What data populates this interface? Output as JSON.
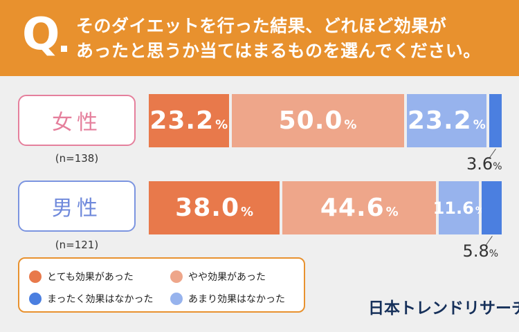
{
  "header": {
    "q_letter": "Q",
    "question_line1": "そのダイエットを行った結果、どれほど効果が",
    "question_line2": "あったと思うか当てはまるものを選んでください。"
  },
  "colors": {
    "header_bg": "#e8912e",
    "very_effective": "#e8794b",
    "somewhat_effective": "#eea68a",
    "not_very_effective": "#97b3ed",
    "not_effective": "#4b7fe0",
    "female": "#e57f9c",
    "male": "#7b94e0"
  },
  "chart_data": {
    "type": "bar",
    "orientation": "horizontal",
    "stacked": true,
    "normalized": true,
    "unit": "%",
    "title": "そのダイエットを行った結果、どれほど効果があったと思うか当てはまるものを選んでください。",
    "categories": [
      "女性",
      "男性"
    ],
    "sample_sizes": [
      "(n=138)",
      "(n=121)"
    ],
    "series": [
      {
        "name": "とても効果があった",
        "values": [
          23.2,
          38.0
        ]
      },
      {
        "name": "やや効果があった",
        "values": [
          50.0,
          44.6
        ]
      },
      {
        "name": "あまり効果はなかった",
        "values": [
          23.2,
          11.6
        ]
      },
      {
        "name": "まったく効果はなかった",
        "values": [
          3.6,
          5.8
        ]
      }
    ],
    "legend_position": "bottom-left"
  },
  "legend": {
    "very_effective": "とても効果があった",
    "somewhat_effective": "やや効果があった",
    "not_effective": "まったく効果はなかった",
    "not_very_effective": "あまり効果はなかった"
  },
  "rows": {
    "female": {
      "label": "女性",
      "n": "(n=138)"
    },
    "male": {
      "label": "男性",
      "n": "(n=121)"
    }
  },
  "labels": {
    "female": {
      "s0": "23.2",
      "s1": "50.0",
      "s2": "23.2",
      "s3": "3.6"
    },
    "male": {
      "s0": "38.0",
      "s1": "44.6",
      "s2": "11.6",
      "s3": "5.8"
    },
    "pct": "%"
  },
  "brand": "日本トレンドリサーチ"
}
